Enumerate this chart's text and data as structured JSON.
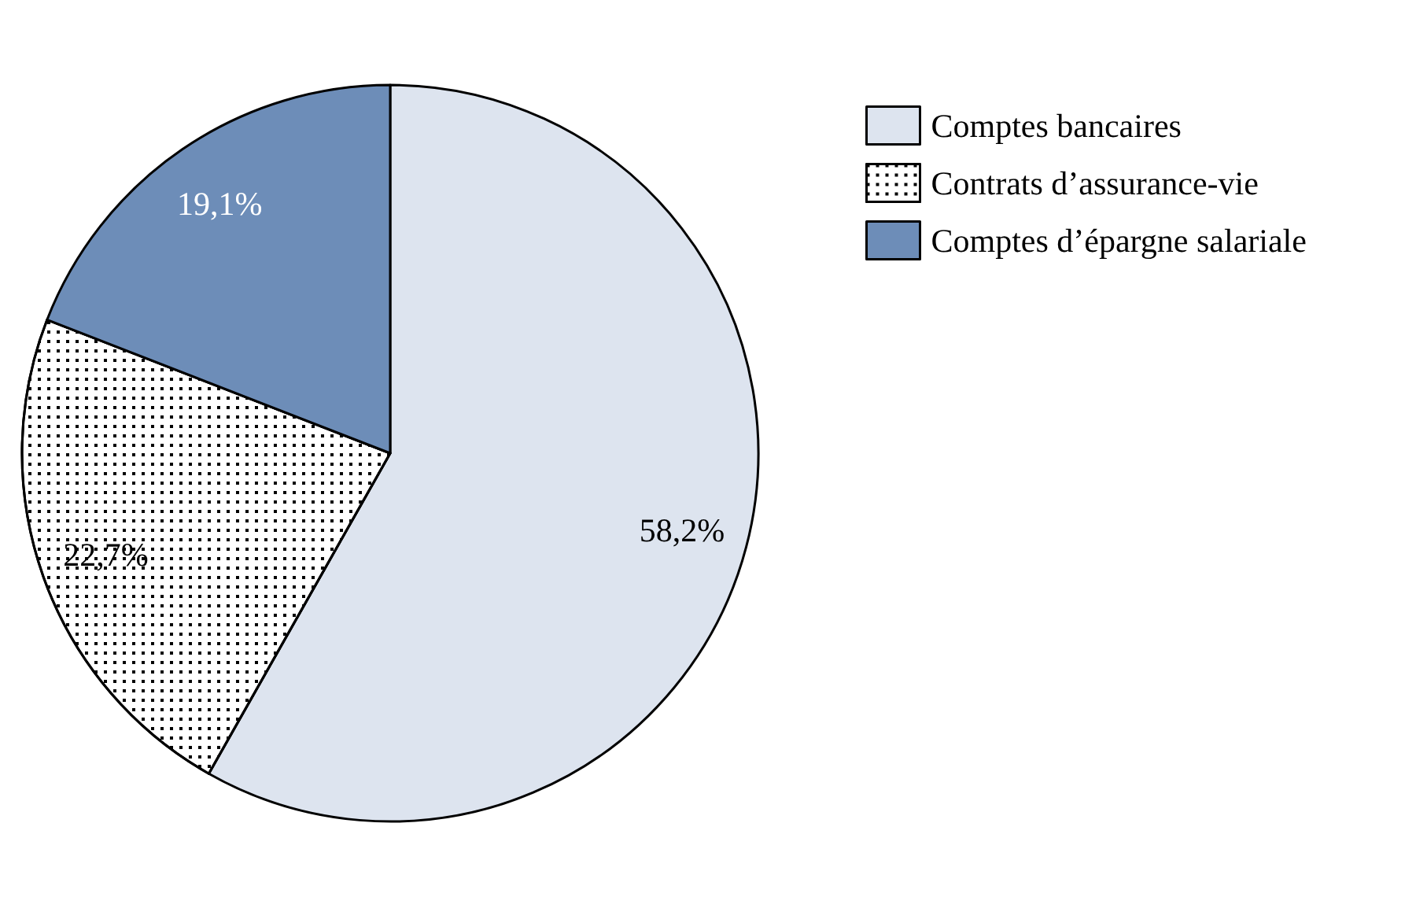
{
  "chart_data": {
    "type": "pie",
    "categories": [
      "Comptes bancaires",
      "Contrats d’assurance-vie",
      "Comptes d’épargne salariale"
    ],
    "values": [
      58.2,
      22.7,
      19.1
    ],
    "colors": [
      "#dde4ef",
      "#ffffff",
      "#6d8db8"
    ],
    "value_labels": [
      "58,2%",
      "22,7%",
      "19,1%"
    ],
    "legend": "top right"
  }
}
